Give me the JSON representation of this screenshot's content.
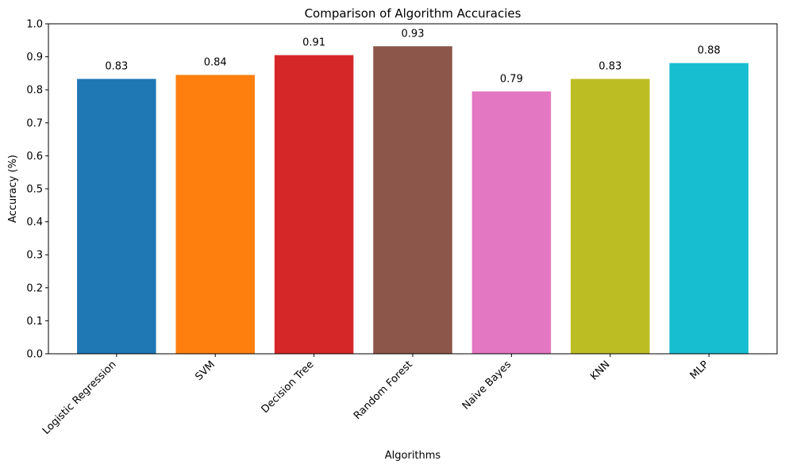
{
  "chart_data": {
    "type": "bar",
    "title": "Comparison of Algorithm Accuracies",
    "xlabel": "Algorithms",
    "ylabel": "Accuracy (%)",
    "categories": [
      "Logistic Regression",
      "SVM",
      "Decision Tree",
      "Random Forest",
      "Naive Bayes",
      "KNN",
      "MLP"
    ],
    "values": [
      0.833,
      0.845,
      0.905,
      0.932,
      0.795,
      0.833,
      0.881
    ],
    "value_labels": [
      "0.83",
      "0.84",
      "0.91",
      "0.93",
      "0.79",
      "0.83",
      "0.88"
    ],
    "colors": [
      "#1f77b4",
      "#ff7f0e",
      "#d62728",
      "#8c564b",
      "#e377c2",
      "#bcbd22",
      "#17becf"
    ],
    "ylim": [
      0,
      1.0
    ],
    "yticks": [
      "0.0",
      "0.1",
      "0.2",
      "0.3",
      "0.4",
      "0.5",
      "0.6",
      "0.7",
      "0.8",
      "0.9",
      "1.0"
    ],
    "grid": false,
    "legend": false
  }
}
